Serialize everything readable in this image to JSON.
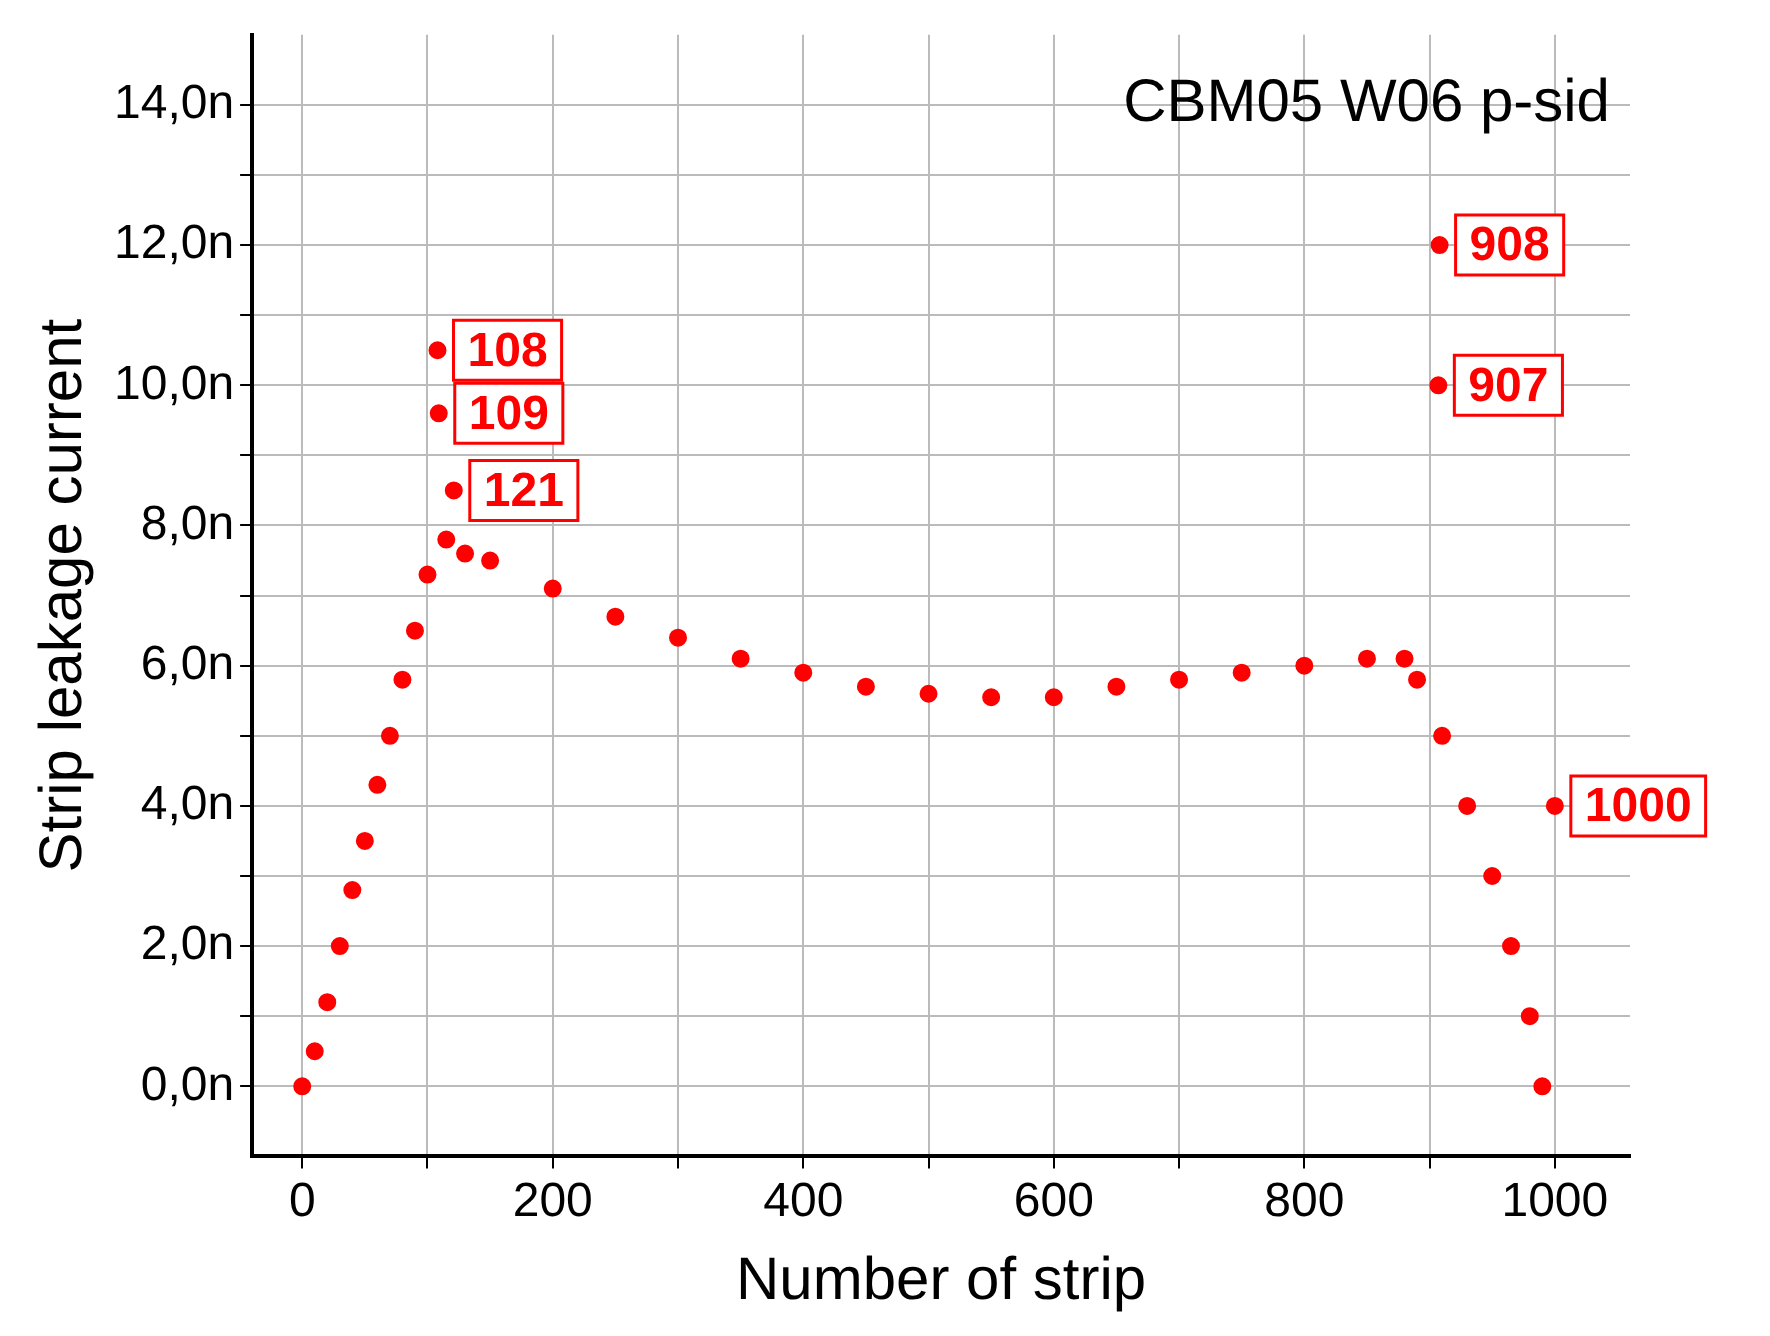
{
  "chart_data": {
    "type": "scatter",
    "title": "CBM05 W06 p-sid",
    "xlabel": "Number of strip",
    "ylabel": "Strip leakage current",
    "color": "#ff0000",
    "marker": "circle",
    "grid": true,
    "xlim": [
      -40,
      1060
    ],
    "xticks": [
      0,
      {
        "value": 100,
        "label": null
      },
      200,
      {
        "value": 300,
        "label": null
      },
      400,
      {
        "value": 500,
        "label": null
      },
      600,
      {
        "value": 700,
        "label": null
      },
      800,
      {
        "value": 900,
        "label": null
      },
      1000
    ],
    "ylim": [
      -1,
      15
    ],
    "yticks": [
      {
        "value": 0,
        "label": "0,0n"
      },
      {
        "value": 1,
        "label": null
      },
      {
        "value": 2,
        "label": "2,0n"
      },
      {
        "value": 3,
        "label": null
      },
      {
        "value": 4,
        "label": "4,0n"
      },
      {
        "value": 5,
        "label": null
      },
      {
        "value": 6,
        "label": "6,0n"
      },
      {
        "value": 7,
        "label": null
      },
      {
        "value": 8,
        "label": "8,0n"
      },
      {
        "value": 9,
        "label": null
      },
      {
        "value": 10,
        "label": "10,0n"
      },
      {
        "value": 11,
        "label": null
      },
      {
        "value": 12,
        "label": "12,0n"
      },
      {
        "value": 13,
        "label": null
      },
      {
        "value": 14,
        "label": "14,0n"
      }
    ],
    "x": [
      0,
      10,
      20,
      30,
      40,
      50,
      60,
      70,
      80,
      90,
      100,
      108,
      109,
      115,
      121,
      130,
      150,
      200,
      250,
      300,
      350,
      400,
      450,
      500,
      550,
      600,
      650,
      700,
      750,
      800,
      850,
      880,
      890,
      907,
      908,
      910,
      930,
      950,
      965,
      980,
      990,
      1000
    ],
    "values": [
      0.0,
      0.5,
      1.2,
      2.0,
      2.8,
      3.5,
      4.3,
      5.0,
      5.8,
      6.5,
      7.3,
      10.5,
      9.6,
      7.8,
      8.5,
      7.6,
      7.5,
      7.1,
      6.7,
      6.4,
      6.1,
      5.9,
      5.7,
      5.6,
      5.55,
      5.55,
      5.7,
      5.8,
      5.9,
      6.0,
      6.1,
      6.1,
      5.8,
      10.0,
      12.0,
      5.0,
      4.0,
      3.0,
      2.0,
      1.0,
      0.0,
      4.0
    ],
    "annotations": [
      {
        "text": "108",
        "x": 108,
        "y": 10.5
      },
      {
        "text": "109",
        "x": 109,
        "y": 9.6
      },
      {
        "text": "121",
        "x": 121,
        "y": 8.5
      },
      {
        "text": "907",
        "x": 907,
        "y": 10.0
      },
      {
        "text": "908",
        "x": 908,
        "y": 12.0
      },
      {
        "text": "1000",
        "x": 1000,
        "y": 4.0
      }
    ]
  }
}
